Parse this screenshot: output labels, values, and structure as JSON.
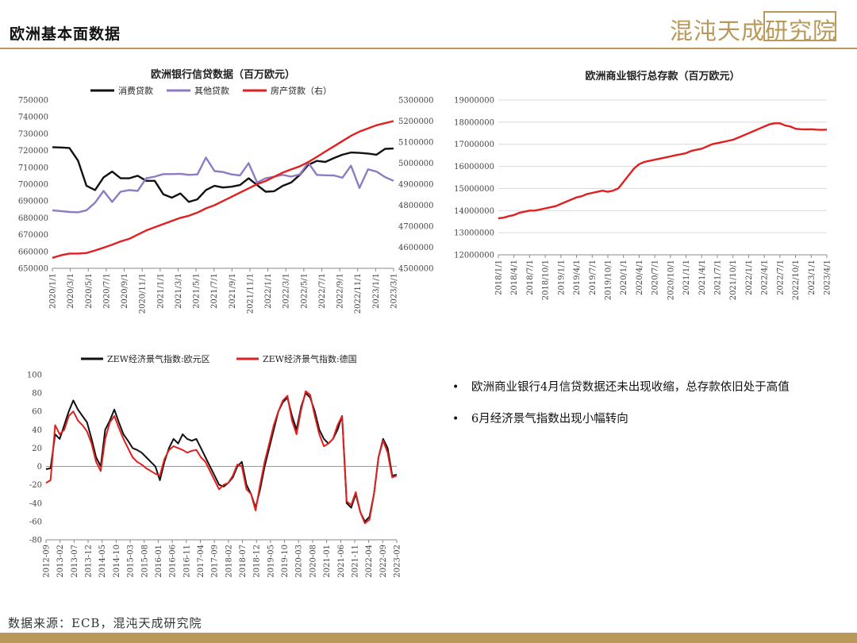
{
  "page": {
    "title": "欧洲基本面数据",
    "logo_text": "混沌天成研究院",
    "source": "数据来源：ECB，混沌天成研究院",
    "colors": {
      "gold": "#b8995a",
      "red": "#e02020",
      "black": "#111111",
      "purple": "#8e7cc3"
    }
  },
  "bullets": [
    "欧洲商业银行4月信贷数据还未出现收缩，总存款依旧处于高值",
    "6月经济景气指数出现小幅转向"
  ],
  "chart_data": [
    {
      "type": "line",
      "title": "欧洲银行信贷数据（百万欧元）",
      "legend_position": "top",
      "x_tick_labels": [
        "2020/1/1",
        "2020/3/1",
        "2020/5/1",
        "2020/7/1",
        "2020/9/1",
        "2020/11/1",
        "2021/1/1",
        "2021/3/1",
        "2021/5/1",
        "2021/7/1",
        "2021/9/1",
        "2021/11/1",
        "2022/1/1",
        "2022/3/1",
        "2022/5/1",
        "2022/7/1",
        "2022/9/1",
        "2022/11/1",
        "2023/1/1",
        "2023/3/1"
      ],
      "y_left": {
        "min": 650000,
        "max": 750000,
        "step": 10000
      },
      "y_right": {
        "min": 4500000,
        "max": 5300000,
        "step": 100000
      },
      "series": [
        {
          "name": "消费贷款",
          "axis": "left",
          "color": "#111111",
          "values": [
            722000,
            721800,
            721500,
            714000,
            699000,
            696500,
            704000,
            707500,
            703500,
            703500,
            705000,
            702000,
            702000,
            694000,
            692000,
            694500,
            689500,
            691000,
            696500,
            699000,
            698000,
            698500,
            699500,
            703500,
            699500,
            695500,
            695800,
            699000,
            701000,
            705500,
            711500,
            713800,
            713200,
            715500,
            717500,
            718800,
            718600,
            718200,
            717500,
            721000,
            721200
          ]
        },
        {
          "name": "其他贷款",
          "axis": "left",
          "color": "#8e7cc3",
          "values": [
            684500,
            684000,
            683500,
            683300,
            684500,
            689000,
            696000,
            689500,
            695500,
            696500,
            696000,
            703500,
            704500,
            706000,
            706000,
            706200,
            705500,
            705800,
            715800,
            707800,
            707200,
            705800,
            705200,
            712500,
            701000,
            703500,
            704500,
            705500,
            704500,
            705800,
            712800,
            705500,
            705300,
            705200,
            703800,
            711000,
            697800,
            708800,
            707500,
            704200,
            702000
          ]
        },
        {
          "name": "房产贷款（右）",
          "axis": "right",
          "color": "#e02020",
          "values": [
            4550000,
            4562000,
            4570000,
            4570000,
            4573000,
            4585000,
            4598000,
            4612000,
            4628000,
            4640000,
            4660000,
            4680000,
            4695000,
            4710000,
            4725000,
            4740000,
            4750000,
            4765000,
            4785000,
            4800000,
            4820000,
            4840000,
            4860000,
            4880000,
            4900000,
            4915000,
            4935000,
            4955000,
            4970000,
            4985000,
            5005000,
            5030000,
            5055000,
            5080000,
            5105000,
            5130000,
            5150000,
            5165000,
            5180000,
            5190000,
            5200000
          ]
        }
      ]
    },
    {
      "type": "line",
      "title": "欧洲商业银行总存款（百万欧元）",
      "x_tick_labels": [
        "2018/1/1",
        "2018/4/1",
        "2018/7/1",
        "2018/10/1",
        "2019/1/1",
        "2019/4/1",
        "2019/7/1",
        "2019/10/1",
        "2020/1/1",
        "2020/4/1",
        "2020/7/1",
        "2020/10/1",
        "2021/1/1",
        "2021/4/1",
        "2021/7/1",
        "2021/10/1",
        "2022/1/1",
        "2022/4/1",
        "2022/7/1",
        "2022/10/1",
        "2023/1/1",
        "2023/4/1"
      ],
      "y_left": {
        "min": 12000000,
        "max": 19000000,
        "step": 1000000
      },
      "series": [
        {
          "name": "",
          "axis": "left",
          "color": "#e02020",
          "values": [
            13650000,
            13680000,
            13750000,
            13800000,
            13900000,
            13950000,
            14000000,
            14000000,
            14050000,
            14100000,
            14150000,
            14200000,
            14300000,
            14400000,
            14500000,
            14600000,
            14650000,
            14750000,
            14800000,
            14850000,
            14900000,
            14850000,
            14900000,
            15000000,
            15300000,
            15600000,
            15900000,
            16100000,
            16200000,
            16250000,
            16300000,
            16350000,
            16400000,
            16450000,
            16500000,
            16550000,
            16600000,
            16700000,
            16750000,
            16800000,
            16900000,
            17000000,
            17050000,
            17100000,
            17150000,
            17200000,
            17300000,
            17400000,
            17500000,
            17600000,
            17700000,
            17800000,
            17900000,
            17950000,
            17950000,
            17850000,
            17800000,
            17700000,
            17680000,
            17670000,
            17680000,
            17660000,
            17650000,
            17660000
          ]
        }
      ]
    },
    {
      "type": "line",
      "title": "",
      "legend_position": "top",
      "x_tick_labels": [
        "2012-09",
        "2013-02",
        "2013-07",
        "2013-12",
        "2014-05",
        "2014-10",
        "2015-03",
        "2015-08",
        "2016-01",
        "2016-06",
        "2016-11",
        "2017-04",
        "2017-09",
        "2018-02",
        "2018-07",
        "2018-12",
        "2019-05",
        "2019-10",
        "2020-03",
        "2020-08",
        "2021-01",
        "2021-06",
        "2021-11",
        "2022-04",
        "2022-09",
        "2023-02"
      ],
      "y_left": {
        "min": -80,
        "max": 100,
        "step": 20
      },
      "series": [
        {
          "name": "ZEW经济景气指数:欧元区",
          "axis": "left",
          "color": "#111111",
          "values": [
            -3,
            -2,
            35,
            30,
            45,
            60,
            72,
            62,
            55,
            48,
            30,
            10,
            0,
            40,
            50,
            62,
            48,
            35,
            28,
            20,
            18,
            15,
            10,
            5,
            0,
            -15,
            5,
            20,
            30,
            25,
            35,
            30,
            28,
            30,
            20,
            10,
            0,
            -10,
            -20,
            -22,
            -18,
            -12,
            0,
            5,
            -20,
            -30,
            -45,
            -25,
            0,
            20,
            40,
            60,
            70,
            75,
            55,
            40,
            65,
            80,
            75,
            60,
            40,
            30,
            25,
            30,
            40,
            55,
            -40,
            -45,
            -30,
            -50,
            -60,
            -55,
            -30,
            10,
            30,
            20,
            -10,
            -9
          ]
        },
        {
          "name": "ZEW经济景气指数:德国",
          "axis": "left",
          "color": "#e02020",
          "values": [
            -18,
            -15,
            45,
            35,
            40,
            55,
            60,
            50,
            45,
            38,
            25,
            5,
            -5,
            30,
            48,
            55,
            42,
            30,
            20,
            10,
            5,
            2,
            -2,
            -5,
            -8,
            -10,
            8,
            18,
            22,
            20,
            18,
            15,
            17,
            18,
            10,
            5,
            -5,
            -15,
            -25,
            -20,
            -18,
            -10,
            2,
            0,
            -25,
            -30,
            -48,
            -20,
            5,
            25,
            45,
            60,
            72,
            77,
            50,
            35,
            62,
            82,
            78,
            55,
            35,
            22,
            25,
            30,
            45,
            55,
            -38,
            -42,
            -28,
            -50,
            -62,
            -58,
            -30,
            10,
            28,
            15,
            -12,
            -10
          ]
        }
      ]
    }
  ]
}
